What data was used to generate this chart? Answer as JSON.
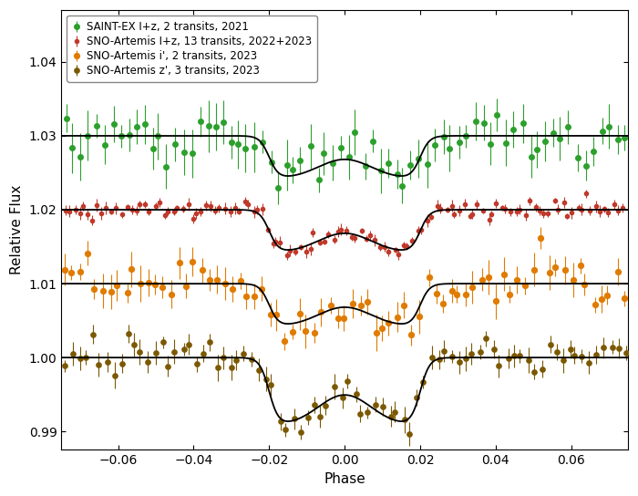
{
  "title": "",
  "xlabel": "Phase",
  "ylabel": "Relative Flux",
  "xlim": [
    -0.075,
    0.075
  ],
  "ylim": [
    0.9875,
    1.047
  ],
  "yticks": [
    0.99,
    1.0,
    1.01,
    1.02,
    1.03,
    1.04
  ],
  "xticks": [
    -0.06,
    -0.04,
    -0.02,
    0.0,
    0.02,
    0.04,
    0.06
  ],
  "background_color": "#ffffff",
  "series": [
    {
      "label": "SAINT-EX I+z, 2 transits, 2021",
      "color": "#2ca02c",
      "baseline": 1.03,
      "depth": 0.0058,
      "t14": 0.04,
      "t23": 0.026,
      "rounding": 0.007,
      "scatter": 0.0018,
      "n_points": 72,
      "marker_size": 4.0,
      "yerr_lo": 0.0015,
      "yerr_hi": 0.0035
    },
    {
      "label": "SNO-Artemis I+z, 13 transits, 2022+2023",
      "color": "#c0392b",
      "baseline": 1.02,
      "depth": 0.0058,
      "t14": 0.04,
      "t23": 0.026,
      "rounding": 0.007,
      "scatter": 0.00055,
      "n_points": 120,
      "marker_size": 3.0,
      "yerr_lo": 0.00035,
      "yerr_hi": 0.00085
    },
    {
      "label": "SNO-Artemis i', 2 transits, 2023",
      "color": "#e07b00",
      "baseline": 1.01,
      "depth": 0.0058,
      "t14": 0.04,
      "t23": 0.026,
      "rounding": 0.007,
      "scatter": 0.0016,
      "n_points": 75,
      "marker_size": 4.2,
      "yerr_lo": 0.001,
      "yerr_hi": 0.0025
    },
    {
      "label": "SNO-Artemis z', 3 transits, 2023",
      "color": "#7B5800",
      "baseline": 1.0,
      "depth": 0.0092,
      "t14": 0.04,
      "t23": 0.026,
      "rounding": 0.007,
      "scatter": 0.0012,
      "n_points": 82,
      "marker_size": 3.8,
      "yerr_lo": 0.0008,
      "yerr_hi": 0.0018
    }
  ]
}
